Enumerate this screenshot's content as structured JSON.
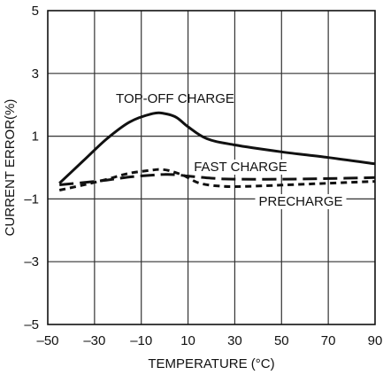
{
  "chart_data": {
    "type": "line",
    "title": "",
    "xlabel": "TEMPERATURE (°C)",
    "ylabel": "CURRENT ERROR(%)",
    "xlim": [
      -50,
      90
    ],
    "ylim": [
      -5,
      5
    ],
    "x_ticks": [
      "–50",
      "–30",
      "–10",
      "10",
      "30",
      "50",
      "70",
      "90"
    ],
    "y_ticks": [
      "–5",
      "–3",
      "–1",
      "1",
      "3",
      "5"
    ],
    "grid": true,
    "legend": "none (curves labeled directly)",
    "series": [
      {
        "name": "TOP-OFF CHARGE",
        "style": "solid",
        "x": [
          -45,
          -35,
          -25,
          -15,
          -5,
          0,
          5,
          10,
          18,
          30,
          50,
          70,
          90
        ],
        "y": [
          -0.5,
          0.2,
          0.9,
          1.45,
          1.72,
          1.72,
          1.6,
          1.3,
          0.92,
          0.72,
          0.5,
          0.32,
          0.12
        ]
      },
      {
        "name": "FAST CHARGE",
        "style": "long-dash",
        "x": [
          -45,
          -35,
          -25,
          -15,
          -5,
          0,
          5,
          10,
          20,
          30,
          50,
          70,
          90
        ],
        "y": [
          -0.55,
          -0.48,
          -0.4,
          -0.3,
          -0.24,
          -0.22,
          -0.23,
          -0.27,
          -0.34,
          -0.37,
          -0.37,
          -0.35,
          -0.32
        ]
      },
      {
        "name": "PRECHARGE",
        "style": "short-dash",
        "x": [
          -45,
          -35,
          -25,
          -15,
          -5,
          -2,
          2,
          8,
          15,
          25,
          35,
          50,
          70,
          90
        ],
        "y": [
          -0.72,
          -0.56,
          -0.38,
          -0.18,
          -0.08,
          -0.06,
          -0.1,
          -0.25,
          -0.5,
          -0.6,
          -0.6,
          -0.56,
          -0.5,
          -0.44
        ]
      }
    ]
  }
}
